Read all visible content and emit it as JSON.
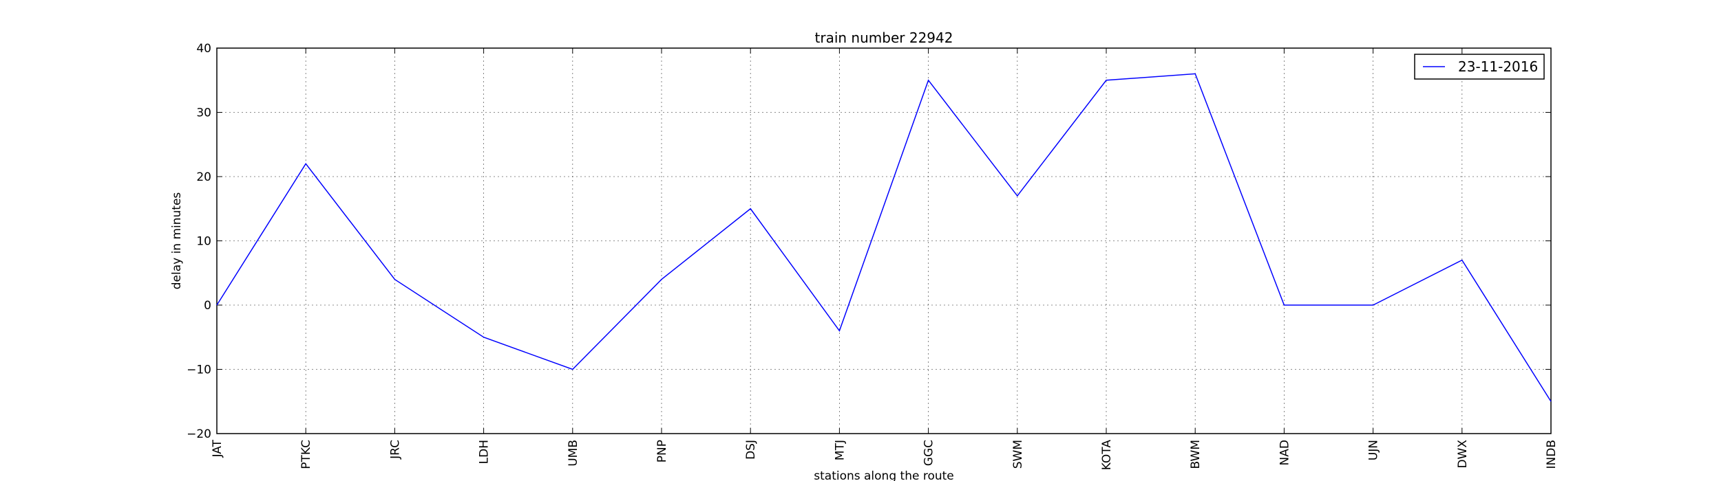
{
  "chart_data": {
    "type": "line",
    "title": "train number 22942",
    "xlabel": "stations along the route",
    "ylabel": "delay in minutes",
    "categories": [
      "JAT",
      "PTKC",
      "JRC",
      "LDH",
      "UMB",
      "PNP",
      "DSJ",
      "MTJ",
      "GGC",
      "SWM",
      "KOTA",
      "BWM",
      "NAD",
      "UJN",
      "DWX",
      "INDB"
    ],
    "series": [
      {
        "name": "23-11-2016",
        "color": "#0000ff",
        "values": [
          0,
          22,
          4,
          -5,
          -10,
          4,
          15,
          -4,
          35,
          17,
          35,
          36,
          0,
          0,
          7,
          -15
        ]
      }
    ],
    "ylim": [
      -20,
      40
    ],
    "yticks": [
      -20,
      -10,
      0,
      10,
      20,
      30,
      40
    ],
    "ytick_labels": [
      "−20",
      "−10",
      "0",
      "10",
      "20",
      "30",
      "40"
    ],
    "grid": true,
    "legend_position": "top-right"
  }
}
